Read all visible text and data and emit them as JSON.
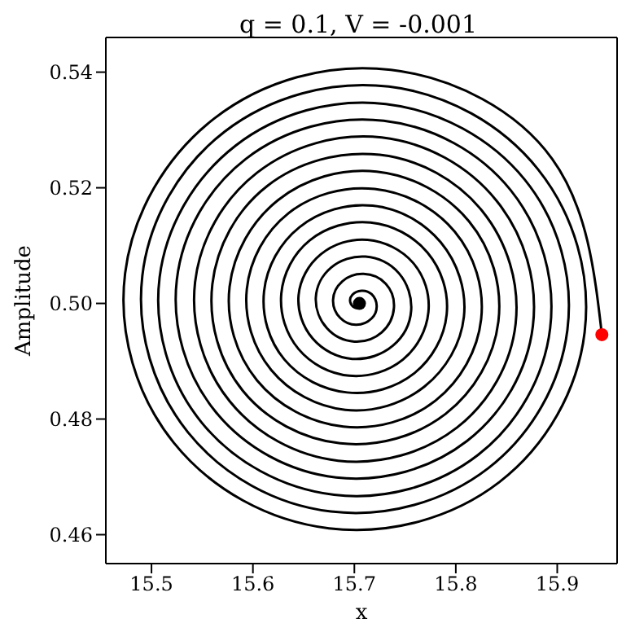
{
  "chart_data": {
    "type": "line",
    "title": "q = 0.1, V = -0.001",
    "xlabel": "x",
    "ylabel": "Amplitude",
    "xlim": [
      15.455,
      15.959
    ],
    "ylim": [
      0.455,
      0.546
    ],
    "xticks": [
      15.5,
      15.6,
      15.7,
      15.8,
      15.9
    ],
    "yticks": [
      0.46,
      0.48,
      {
        "value": 0.5,
        "label": "0.50"
      },
      0.52,
      0.54
    ],
    "grid": false,
    "legend": false,
    "series": [
      {
        "type": "line",
        "color": "#000000",
        "line_style": "solid",
        "marker": "none",
        "x": [
          15.705,
          15.706,
          15.704,
          15.7,
          15.696,
          15.698,
          15.707,
          15.717,
          15.722,
          15.717,
          15.702,
          15.686,
          15.679,
          15.688,
          15.709,
          15.731,
          15.739,
          15.727,
          15.7,
          15.673,
          15.662,
          15.677,
          15.711,
          15.744,
          15.756,
          15.738,
          15.698,
          15.659,
          15.645,
          15.667,
          15.713,
          15.758,
          15.773,
          15.748,
          15.695,
          15.645,
          15.628,
          15.656,
          15.716,
          15.772,
          15.791,
          15.759,
          15.693,
          15.631,
          15.611,
          15.646,
          15.718,
          15.785,
          15.808,
          15.769,
          15.691,
          15.618,
          15.594,
          15.635,
          15.72,
          15.799,
          15.825,
          15.78,
          15.689,
          15.604,
          15.577,
          15.625,
          15.722,
          15.813,
          15.842,
          15.79,
          15.686,
          15.59,
          15.56,
          15.614,
          15.725,
          15.826,
          15.859,
          15.801,
          15.684,
          15.577,
          15.543,
          15.604,
          15.727,
          15.84,
          15.876,
          15.811,
          15.682,
          15.563,
          15.525,
          15.593,
          15.729,
          15.854,
          15.893,
          15.822,
          15.68,
          15.549,
          15.508,
          15.583,
          15.731,
          15.868,
          15.91,
          15.832,
          15.677,
          15.536,
          15.491,
          15.572,
          15.734,
          15.881,
          15.927,
          15.843,
          15.675,
          15.522,
          15.474,
          15.562,
          15.736,
          15.895,
          15.944
        ],
        "values": [
          0.5,
          0.4997,
          0.4993,
          0.4993,
          0.5002,
          0.5015,
          0.5022,
          0.5016,
          0.4996,
          0.4974,
          0.4963,
          0.4975,
          0.5006,
          0.5038,
          0.5051,
          0.5034,
          0.4992,
          0.495,
          0.4934,
          0.4957,
          0.501,
          0.5062,
          0.5081,
          0.5052,
          0.4988,
          0.4927,
          0.4904,
          0.4939,
          0.5014,
          0.5085,
          0.511,
          0.507,
          0.4985,
          0.4903,
          0.4875,
          0.4921,
          0.5017,
          0.5109,
          0.514,
          0.5088,
          0.4981,
          0.4879,
          0.4846,
          0.4903,
          0.5021,
          0.5132,
          0.5169,
          0.5106,
          0.4977,
          0.4856,
          0.4816,
          0.4885,
          0.5025,
          0.5156,
          0.5198,
          0.5124,
          0.4973,
          0.4832,
          0.4787,
          0.4867,
          0.5029,
          0.5179,
          0.5228,
          0.5142,
          0.4969,
          0.4809,
          0.4758,
          0.4849,
          0.5033,
          0.5203,
          0.5257,
          0.516,
          0.4965,
          0.4785,
          0.4728,
          0.4831,
          0.5037,
          0.5226,
          0.5287,
          0.5178,
          0.4961,
          0.4762,
          0.4699,
          0.4813,
          0.5041,
          0.525,
          0.5316,
          0.5196,
          0.4957,
          0.4738,
          0.4669,
          0.4795,
          0.5045,
          0.5273,
          0.5345,
          0.5214,
          0.4954,
          0.4715,
          0.464,
          0.4777,
          0.5048,
          0.5297,
          0.5375,
          0.5232,
          0.495,
          0.4691,
          0.4611,
          0.4759,
          0.5052,
          0.532,
          0.5404,
          0.525,
          0.4946
        ]
      },
      {
        "type": "scatter",
        "color": "#000000",
        "marker": "circle",
        "x": [
          15.705
        ],
        "values": [
          0.5
        ]
      },
      {
        "type": "scatter",
        "color": "#ff0000",
        "marker": "circle",
        "x": [
          15.944
        ],
        "values": [
          0.4946
        ]
      }
    ]
  }
}
